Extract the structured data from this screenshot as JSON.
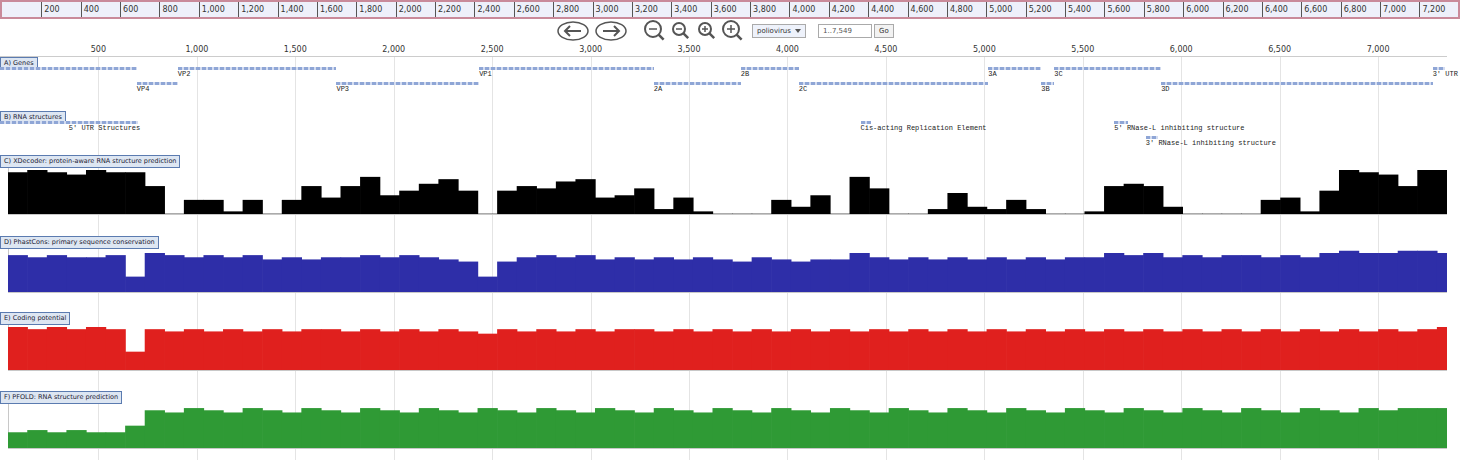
{
  "overview_ruler": {
    "xlim": [
      0,
      7350
    ],
    "ticks": [
      200,
      400,
      600,
      800,
      {
        "value": 1000,
        "label": "1,000"
      },
      {
        "value": 1200,
        "label": "1,200"
      },
      {
        "value": 1400,
        "label": "1,400"
      },
      {
        "value": 1600,
        "label": "1,600"
      },
      {
        "value": 1800,
        "label": "1,800"
      },
      {
        "value": 2000,
        "label": "2,000"
      },
      {
        "value": 2200,
        "label": "2,200"
      },
      {
        "value": 2400,
        "label": "2,400"
      },
      {
        "value": 2600,
        "label": "2,600"
      },
      {
        "value": 2800,
        "label": "2,800"
      },
      {
        "value": 3000,
        "label": "3,000"
      },
      {
        "value": 3200,
        "label": "3,200"
      },
      {
        "value": 3400,
        "label": "3,400"
      },
      {
        "value": 3600,
        "label": "3,600"
      },
      {
        "value": 3800,
        "label": "3,800"
      },
      {
        "value": 4000,
        "label": "4,000"
      },
      {
        "value": 4200,
        "label": "4,200"
      },
      {
        "value": 4400,
        "label": "4,400"
      },
      {
        "value": 4600,
        "label": "4,600"
      },
      {
        "value": 4800,
        "label": "4,800"
      },
      {
        "value": 5000,
        "label": "5,000"
      },
      {
        "value": 5200,
        "label": "5,200"
      },
      {
        "value": 5400,
        "label": "5,400"
      },
      {
        "value": 5600,
        "label": "5,600"
      },
      {
        "value": 5800,
        "label": "5,800"
      },
      {
        "value": 6000,
        "label": "6,000"
      },
      {
        "value": 6200,
        "label": "6,200"
      },
      {
        "value": 6400,
        "label": "6,400"
      },
      {
        "value": 6600,
        "label": "6,600"
      },
      {
        "value": 6800,
        "label": "6,800"
      },
      {
        "value": 7000,
        "label": "7,000"
      },
      {
        "value": 7200,
        "label": "7,200"
      }
    ]
  },
  "toolbar": {
    "reference": "poliovirus",
    "location": "1..7,549",
    "go": "Go"
  },
  "ruler": {
    "xlim": [
      0,
      7350
    ],
    "xticks": [
      500,
      {
        "value": 1000,
        "label": "1,000"
      },
      {
        "value": 1500,
        "label": "1,500"
      },
      {
        "value": 2000,
        "label": "2,000"
      },
      {
        "value": 2500,
        "label": "2,500"
      },
      {
        "value": 3000,
        "label": "3,000"
      },
      {
        "value": 3500,
        "label": "3,500"
      },
      {
        "value": 4000,
        "label": "4,000"
      },
      {
        "value": 4500,
        "label": "4,500"
      },
      {
        "value": 5000,
        "label": "5,000"
      },
      {
        "value": 5500,
        "label": "5,500"
      },
      {
        "value": 6000,
        "label": "6,000"
      },
      {
        "value": 6500,
        "label": "6,500"
      },
      {
        "value": 7000,
        "label": "7,000"
      }
    ]
  },
  "tracks": [
    {
      "label": "A) Genes",
      "features": [
        {
          "name": null,
          "start": 1,
          "end": 695
        },
        {
          "name": "VP4",
          "start": 695,
          "end": 903
        },
        {
          "name": "VP2",
          "start": 903,
          "end": 1709
        },
        {
          "name": "VP3",
          "start": 1709,
          "end": 2434
        },
        {
          "name": "VP1",
          "start": 2434,
          "end": 3321
        },
        {
          "name": "2A",
          "start": 3321,
          "end": 3763
        },
        {
          "name": "2B",
          "start": 3763,
          "end": 4057
        },
        {
          "name": "2C",
          "start": 4057,
          "end": 5020
        },
        {
          "name": "3A",
          "start": 5020,
          "end": 5289
        },
        {
          "name": "3B",
          "start": 5289,
          "end": 5355
        },
        {
          "name": "3C",
          "start": 5355,
          "end": 5898
        },
        {
          "name": "3D",
          "start": 5898,
          "end": 7277
        },
        {
          "name": "3' UTR",
          "start": 7277,
          "end": 7338
        }
      ]
    },
    {
      "label": "B) RNA structures",
      "features": [
        {
          "name": "5' UTR Structures",
          "start": 1,
          "end": 700
        },
        {
          "name": "Cis-acting Replication Element",
          "start": 4371,
          "end": 4422
        },
        {
          "name": "5' RNase-L inhibiting structure",
          "start": 5660,
          "end": 5730
        },
        {
          "name": "3' RNase-L inhibiting structure",
          "start": 5820,
          "end": 5880
        }
      ]
    }
  ],
  "chart_data": [
    {
      "type": "bar",
      "title": "C) XDecoder: protein-aware RNA structure prediction",
      "color": "#000000",
      "xlim": [
        0,
        7350
      ],
      "ylim": [
        0,
        1
      ],
      "tick_labels": false,
      "x": [
        50,
        150,
        250,
        350,
        450,
        550,
        650,
        750,
        850,
        950,
        1050,
        1150,
        1250,
        1350,
        1450,
        1550,
        1650,
        1750,
        1850,
        1950,
        2050,
        2150,
        2250,
        2350,
        2450,
        2550,
        2650,
        2750,
        2850,
        2950,
        3050,
        3150,
        3250,
        3350,
        3450,
        3550,
        3650,
        3750,
        3850,
        3950,
        4050,
        4150,
        4250,
        4350,
        4450,
        4550,
        4650,
        4750,
        4850,
        4950,
        5050,
        5150,
        5250,
        5350,
        5450,
        5550,
        5650,
        5750,
        5850,
        5950,
        6050,
        6150,
        6250,
        6350,
        6450,
        6550,
        6650,
        6750,
        6850,
        6950,
        7050,
        7150,
        7250,
        7350
      ],
      "values": [
        0.9,
        0.95,
        0.9,
        0.85,
        0.95,
        0.9,
        0.9,
        0.6,
        0,
        0.3,
        0.3,
        0.05,
        0.3,
        0,
        0.3,
        0.6,
        0.35,
        0.6,
        0.8,
        0.4,
        0.5,
        0.65,
        0.75,
        0.5,
        0,
        0.5,
        0.6,
        0.55,
        0.7,
        0.75,
        0.35,
        0.4,
        0.55,
        0.1,
        0.35,
        0.05,
        0,
        0,
        0,
        0.3,
        0.15,
        0.4,
        0,
        0.8,
        0.55,
        0,
        0,
        0.1,
        0.45,
        0.15,
        0.1,
        0.3,
        0.1,
        0,
        0,
        0.05,
        0.6,
        0.65,
        0.6,
        0.15,
        0,
        0,
        0,
        0,
        0.3,
        0.35,
        0.05,
        0.5,
        0.95,
        0.9,
        0.85,
        0.6,
        0.95,
        0.95
      ]
    },
    {
      "type": "bar",
      "title": "D) PhastCons: primary sequence conservation",
      "color": "#2e2ea8",
      "xlim": [
        0,
        7350
      ],
      "ylim": [
        0,
        1
      ],
      "tick_labels": false,
      "x": [
        50,
        150,
        250,
        350,
        450,
        550,
        650,
        750,
        850,
        950,
        1050,
        1150,
        1250,
        1350,
        1450,
        1550,
        1650,
        1750,
        1850,
        1950,
        2050,
        2150,
        2250,
        2350,
        2450,
        2550,
        2650,
        2750,
        2850,
        2950,
        3050,
        3150,
        3250,
        3350,
        3450,
        3550,
        3650,
        3750,
        3850,
        3950,
        4050,
        4150,
        4250,
        4350,
        4450,
        4550,
        4650,
        4750,
        4850,
        4950,
        5050,
        5150,
        5250,
        5350,
        5450,
        5550,
        5650,
        5750,
        5850,
        5950,
        6050,
        6150,
        6250,
        6350,
        6450,
        6550,
        6650,
        6750,
        6850,
        6950,
        7050,
        7150,
        7250,
        7350
      ],
      "values": [
        0.85,
        0.8,
        0.85,
        0.8,
        0.8,
        0.85,
        0.35,
        0.9,
        0.85,
        0.8,
        0.85,
        0.8,
        0.85,
        0.75,
        0.8,
        0.75,
        0.8,
        0.8,
        0.85,
        0.8,
        0.85,
        0.8,
        0.75,
        0.7,
        0.35,
        0.7,
        0.8,
        0.85,
        0.8,
        0.85,
        0.75,
        0.8,
        0.75,
        0.8,
        0.75,
        0.8,
        0.75,
        0.7,
        0.8,
        0.75,
        0.7,
        0.75,
        0.75,
        0.9,
        0.8,
        0.75,
        0.8,
        0.75,
        0.8,
        0.75,
        0.8,
        0.75,
        0.8,
        0.75,
        0.8,
        0.8,
        0.9,
        0.85,
        0.9,
        0.8,
        0.85,
        0.8,
        0.85,
        0.85,
        0.8,
        0.85,
        0.8,
        0.9,
        0.95,
        0.9,
        0.9,
        0.95,
        0.95,
        0.9
      ]
    },
    {
      "type": "bar",
      "title": "E) Coding potential",
      "color": "#e0201e",
      "xlim": [
        0,
        7350
      ],
      "ylim": [
        0,
        1
      ],
      "tick_labels": false,
      "x": [
        50,
        150,
        250,
        350,
        450,
        550,
        650,
        750,
        850,
        950,
        1050,
        1150,
        1250,
        1350,
        1450,
        1550,
        1650,
        1750,
        1850,
        1950,
        2050,
        2150,
        2250,
        2350,
        2450,
        2550,
        2650,
        2750,
        2850,
        2950,
        3050,
        3150,
        3250,
        3350,
        3450,
        3550,
        3650,
        3750,
        3850,
        3950,
        4050,
        4150,
        4250,
        4350,
        4450,
        4550,
        4650,
        4750,
        4850,
        4950,
        5050,
        5150,
        5250,
        5350,
        5450,
        5550,
        5650,
        5750,
        5850,
        5950,
        6050,
        6150,
        6250,
        6350,
        6450,
        6550,
        6650,
        6750,
        6850,
        6950,
        7050,
        7150,
        7250,
        7350
      ],
      "values": [
        0.95,
        0.9,
        0.95,
        0.9,
        0.95,
        0.9,
        0.4,
        0.9,
        0.85,
        0.9,
        0.85,
        0.9,
        0.85,
        0.9,
        0.85,
        0.9,
        0.9,
        0.85,
        0.9,
        0.85,
        0.9,
        0.85,
        0.9,
        0.85,
        0.8,
        0.9,
        0.85,
        0.9,
        0.85,
        0.9,
        0.85,
        0.9,
        0.9,
        0.85,
        0.9,
        0.85,
        0.9,
        0.85,
        0.9,
        0.85,
        0.9,
        0.85,
        0.9,
        0.85,
        0.9,
        0.85,
        0.9,
        0.85,
        0.9,
        0.85,
        0.9,
        0.85,
        0.9,
        0.85,
        0.9,
        0.85,
        0.9,
        0.85,
        0.9,
        0.85,
        0.9,
        0.85,
        0.9,
        0.85,
        0.9,
        0.85,
        0.9,
        0.85,
        0.9,
        0.85,
        0.9,
        0.85,
        0.9,
        0.95
      ]
    },
    {
      "type": "bar",
      "title": "F) PFOLD: RNA structure prediction",
      "color": "#2f9a35",
      "xlim": [
        0,
        7350
      ],
      "ylim": [
        0,
        1
      ],
      "tick_labels": false,
      "x": [
        50,
        150,
        250,
        350,
        450,
        550,
        650,
        750,
        850,
        950,
        1050,
        1150,
        1250,
        1350,
        1450,
        1550,
        1650,
        1750,
        1850,
        1950,
        2050,
        2150,
        2250,
        2350,
        2450,
        2550,
        2650,
        2750,
        2850,
        2950,
        3050,
        3150,
        3250,
        3350,
        3450,
        3550,
        3650,
        3750,
        3850,
        3950,
        4050,
        4150,
        4250,
        4350,
        4450,
        4550,
        4650,
        4750,
        4850,
        4950,
        5050,
        5150,
        5250,
        5350,
        5450,
        5550,
        5650,
        5750,
        5850,
        5950,
        6050,
        6150,
        6250,
        6350,
        6450,
        6550,
        6650,
        6750,
        6850,
        6950,
        7050,
        7150,
        7250,
        7350
      ],
      "values": [
        0.35,
        0.4,
        0.35,
        0.4,
        0.35,
        0.35,
        0.5,
        0.85,
        0.8,
        0.9,
        0.85,
        0.8,
        0.9,
        0.85,
        0.8,
        0.9,
        0.85,
        0.8,
        0.9,
        0.85,
        0.8,
        0.9,
        0.85,
        0.8,
        0.9,
        0.85,
        0.8,
        0.9,
        0.85,
        0.8,
        0.9,
        0.85,
        0.8,
        0.9,
        0.85,
        0.8,
        0.9,
        0.85,
        0.8,
        0.9,
        0.85,
        0.8,
        0.9,
        0.85,
        0.8,
        0.9,
        0.85,
        0.8,
        0.9,
        0.85,
        0.8,
        0.9,
        0.85,
        0.8,
        0.9,
        0.85,
        0.8,
        0.9,
        0.85,
        0.8,
        0.9,
        0.85,
        0.8,
        0.9,
        0.85,
        0.8,
        0.9,
        0.85,
        0.8,
        0.9,
        0.85,
        0.9,
        0.9,
        0.9
      ]
    }
  ]
}
